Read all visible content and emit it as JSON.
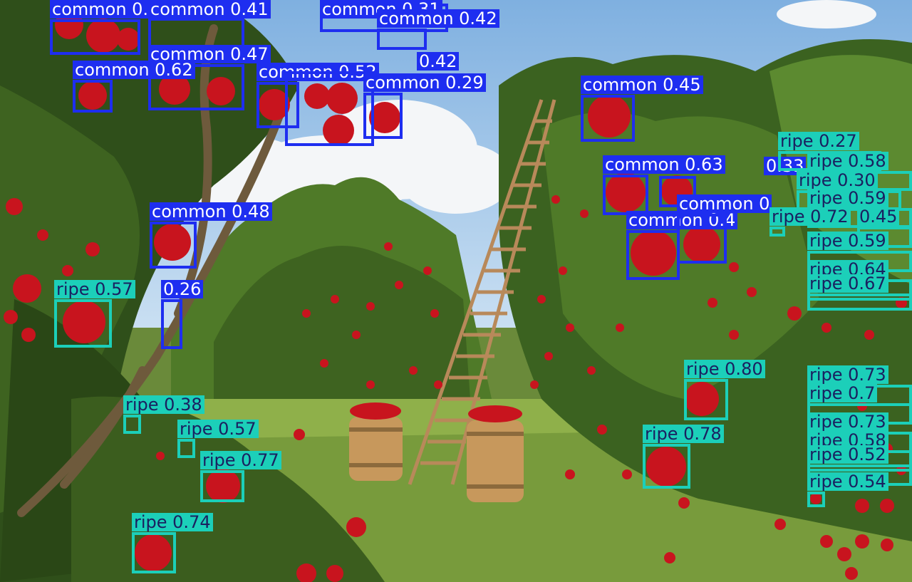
{
  "scene": {
    "description_label": "apple orchard photo with detection overlay",
    "colors": {
      "sky_top": "#7fb0e0",
      "sky_bottom": "#c9dff2",
      "cloud": "#f4f6f8",
      "foliage_dark": "#2f4f1a",
      "foliage_mid": "#4f7a28",
      "foliage_light": "#7aa542",
      "grass": "#8fb04a",
      "apple": "#c8141e",
      "barrel": "#c7985c",
      "ladder": "#b8895a"
    }
  },
  "detections": [
    {
      "cls": "common",
      "text": "common 0.72"
    },
    {
      "cls": "common",
      "text": "common 0.41"
    },
    {
      "cls": "common",
      "text": "common 0.31"
    },
    {
      "cls": "common",
      "text": "common 0.42"
    },
    {
      "cls": "common",
      "text": "common 0.47"
    },
    {
      "cls": "common",
      "text": "common 0.62"
    },
    {
      "cls": "common",
      "text": "common 0.52"
    },
    {
      "cls": "common",
      "text": "0.42"
    },
    {
      "cls": "common",
      "text": "common 0.29"
    },
    {
      "cls": "common",
      "text": "common 0.45"
    },
    {
      "cls": "common",
      "text": "common 0.63"
    },
    {
      "cls": "common",
      "text": "0.33"
    },
    {
      "cls": "common",
      "text": "common 0.4"
    },
    {
      "cls": "common",
      "text": "common 0"
    },
    {
      "cls": "common",
      "text": "common 0.48"
    },
    {
      "cls": "common",
      "text": "0.26"
    },
    {
      "cls": "ripe",
      "text": "ripe 0.57"
    },
    {
      "cls": "ripe",
      "text": "ripe 0.27"
    },
    {
      "cls": "ripe",
      "text": "ripe 0.58"
    },
    {
      "cls": "ripe",
      "text": "ripe 0.30"
    },
    {
      "cls": "ripe",
      "text": "ripe 0.59"
    },
    {
      "cls": "ripe",
      "text": "ripe 0.72"
    },
    {
      "cls": "ripe",
      "text": "0.45"
    },
    {
      "cls": "ripe",
      "text": "ripe 0.59"
    },
    {
      "cls": "ripe",
      "text": "ripe 0.64"
    },
    {
      "cls": "ripe",
      "text": "ripe 0.67"
    },
    {
      "cls": "ripe",
      "text": "ripe 0.80"
    },
    {
      "cls": "ripe",
      "text": "ripe 0.73"
    },
    {
      "cls": "ripe",
      "text": "ripe 0.7"
    },
    {
      "cls": "ripe",
      "text": "ripe 0.78"
    },
    {
      "cls": "ripe",
      "text": "ripe 0.73"
    },
    {
      "cls": "ripe",
      "text": "ripe 0.58"
    },
    {
      "cls": "ripe",
      "text": "ripe 0.52"
    },
    {
      "cls": "ripe",
      "text": "ripe 0.54"
    },
    {
      "cls": "ripe",
      "text": "ripe 0.38"
    },
    {
      "cls": "ripe",
      "text": "ripe 0.57"
    },
    {
      "cls": "ripe",
      "text": "ripe 0.77"
    },
    {
      "cls": "ripe",
      "text": "ripe 0.74"
    }
  ]
}
